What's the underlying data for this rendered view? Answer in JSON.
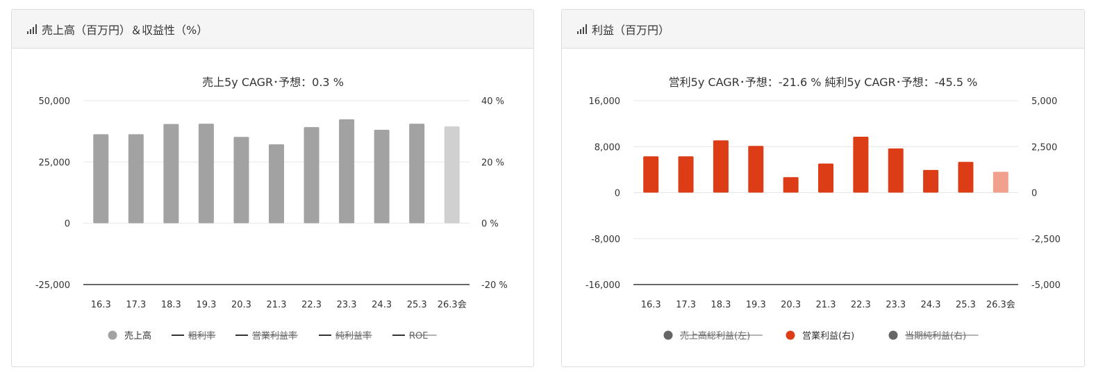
{
  "colors": {
    "revenue": "#a3a2a2",
    "revenue_forecast": "#d0d0d0",
    "op_profit": "#dc3d17",
    "op_profit_forecast": "#f0a08c",
    "legend_inactive": "#666666",
    "grid": "#e6e6e6",
    "zero_line": "#333333"
  },
  "panel1": {
    "icon": "bar-chart-icon",
    "title": "売上高（百万円）＆収益性（%）",
    "chart_data": {
      "type": "bar",
      "title": "売上5y CAGR･予想：0.3 %",
      "categories": [
        "16.3",
        "17.3",
        "18.3",
        "19.3",
        "20.3",
        "21.3",
        "22.3",
        "23.3",
        "24.3",
        "25.3",
        "26.3会"
      ],
      "series": [
        {
          "name": "売上高",
          "values": [
            36300,
            36300,
            40500,
            40600,
            35200,
            32200,
            39200,
            42400,
            38100,
            40600,
            39500
          ],
          "axis": "left"
        }
      ],
      "forecast_index": 10,
      "ylim_left": [
        -25000,
        50000
      ],
      "ylim_right": [
        -20,
        40
      ],
      "left_ticks": [
        "50,000",
        "25,000",
        "0",
        "-25,000"
      ],
      "right_ticks": [
        "40 %",
        "20 %",
        "0 %",
        "-20 %"
      ],
      "legend": [
        {
          "label": "売上高",
          "marker": "circle",
          "active": true
        },
        {
          "label": "粗利率",
          "marker": "line",
          "active": false
        },
        {
          "label": "営業利益率",
          "marker": "line",
          "active": false
        },
        {
          "label": "純利益率",
          "marker": "line",
          "active": false
        },
        {
          "label": "ROE",
          "marker": "line",
          "active": false
        }
      ]
    }
  },
  "panel2": {
    "icon": "bar-chart-icon",
    "title": "利益（百万円）",
    "chart_data": {
      "type": "bar",
      "title": "営利5y CAGR･予想：-21.6 %  純利5y CAGR･予想：-45.5 %",
      "categories": [
        "16.3",
        "17.3",
        "18.3",
        "19.3",
        "20.3",
        "21.3",
        "22.3",
        "23.3",
        "24.3",
        "25.3",
        "26.3会"
      ],
      "series": [
        {
          "name": "営業利益(右)",
          "values": [
            1970,
            1970,
            2840,
            2540,
            840,
            1580,
            3040,
            2400,
            1230,
            1670,
            1130
          ],
          "axis": "right"
        }
      ],
      "forecast_index": 10,
      "ylim_left": [
        -16000,
        16000
      ],
      "ylim_right": [
        -5000,
        5000
      ],
      "left_ticks": [
        "16,000",
        "8,000",
        "0",
        "-8,000",
        "-16,000"
      ],
      "right_ticks": [
        "5,000",
        "2,500",
        "0",
        "-2,500",
        "-5,000"
      ],
      "legend": [
        {
          "label": "売上高総利益(左)",
          "marker": "circle",
          "active": false
        },
        {
          "label": "営業利益(右)",
          "marker": "circle",
          "active": true
        },
        {
          "label": "当期純利益(右)",
          "marker": "circle",
          "active": false
        }
      ]
    }
  }
}
